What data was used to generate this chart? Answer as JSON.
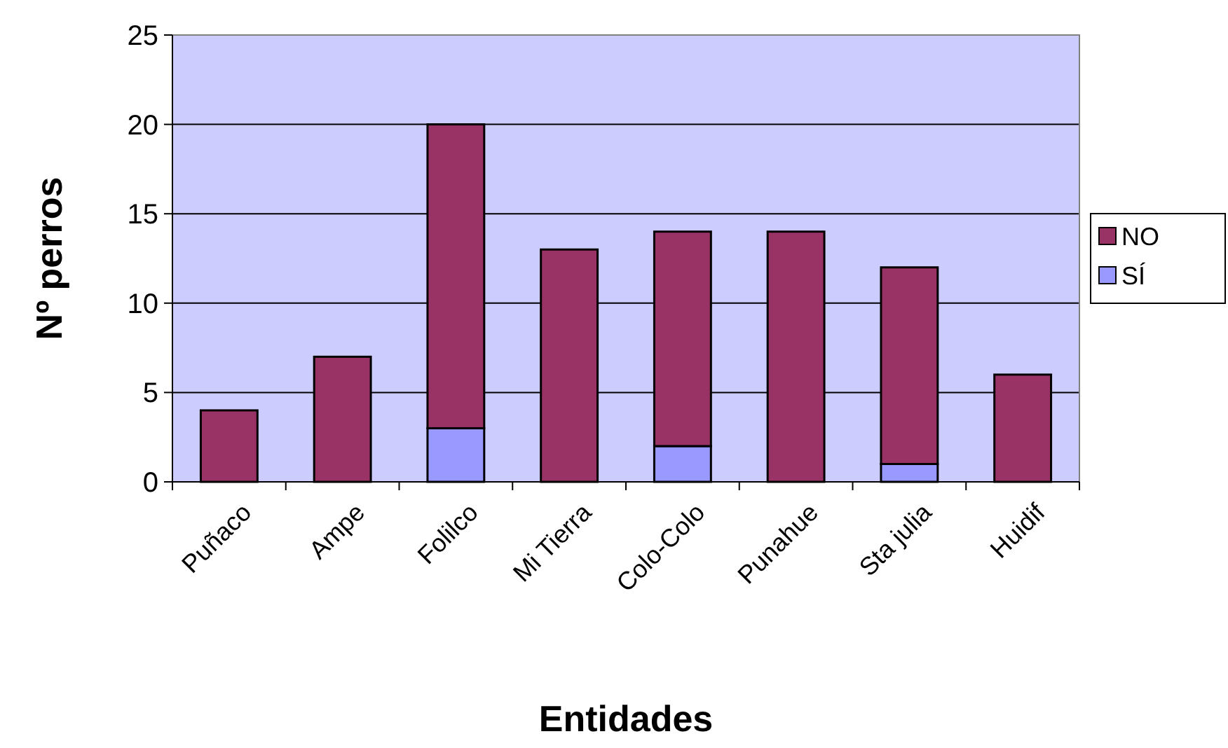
{
  "chart_data": {
    "type": "bar",
    "xlabel": "Entidades",
    "ylabel": "Nº perros",
    "categories": [
      "Puñaco",
      "Ampe",
      "Folilco",
      "Mi Tierra",
      "Colo-Colo",
      "Punahue",
      "Sta julia",
      "Huidif"
    ],
    "series": [
      {
        "name": "SÍ",
        "color": "#9999ff",
        "values": [
          0,
          0,
          3,
          0,
          2,
          0,
          1,
          0
        ]
      },
      {
        "name": "NO",
        "color": "#993366",
        "values": [
          4,
          7,
          17,
          13,
          12,
          14,
          11,
          6
        ]
      }
    ],
    "stacked": true,
    "ylim": [
      0,
      25
    ],
    "yticks": [
      0,
      5,
      10,
      15,
      20,
      25
    ],
    "grid": "y",
    "legend": "right"
  }
}
